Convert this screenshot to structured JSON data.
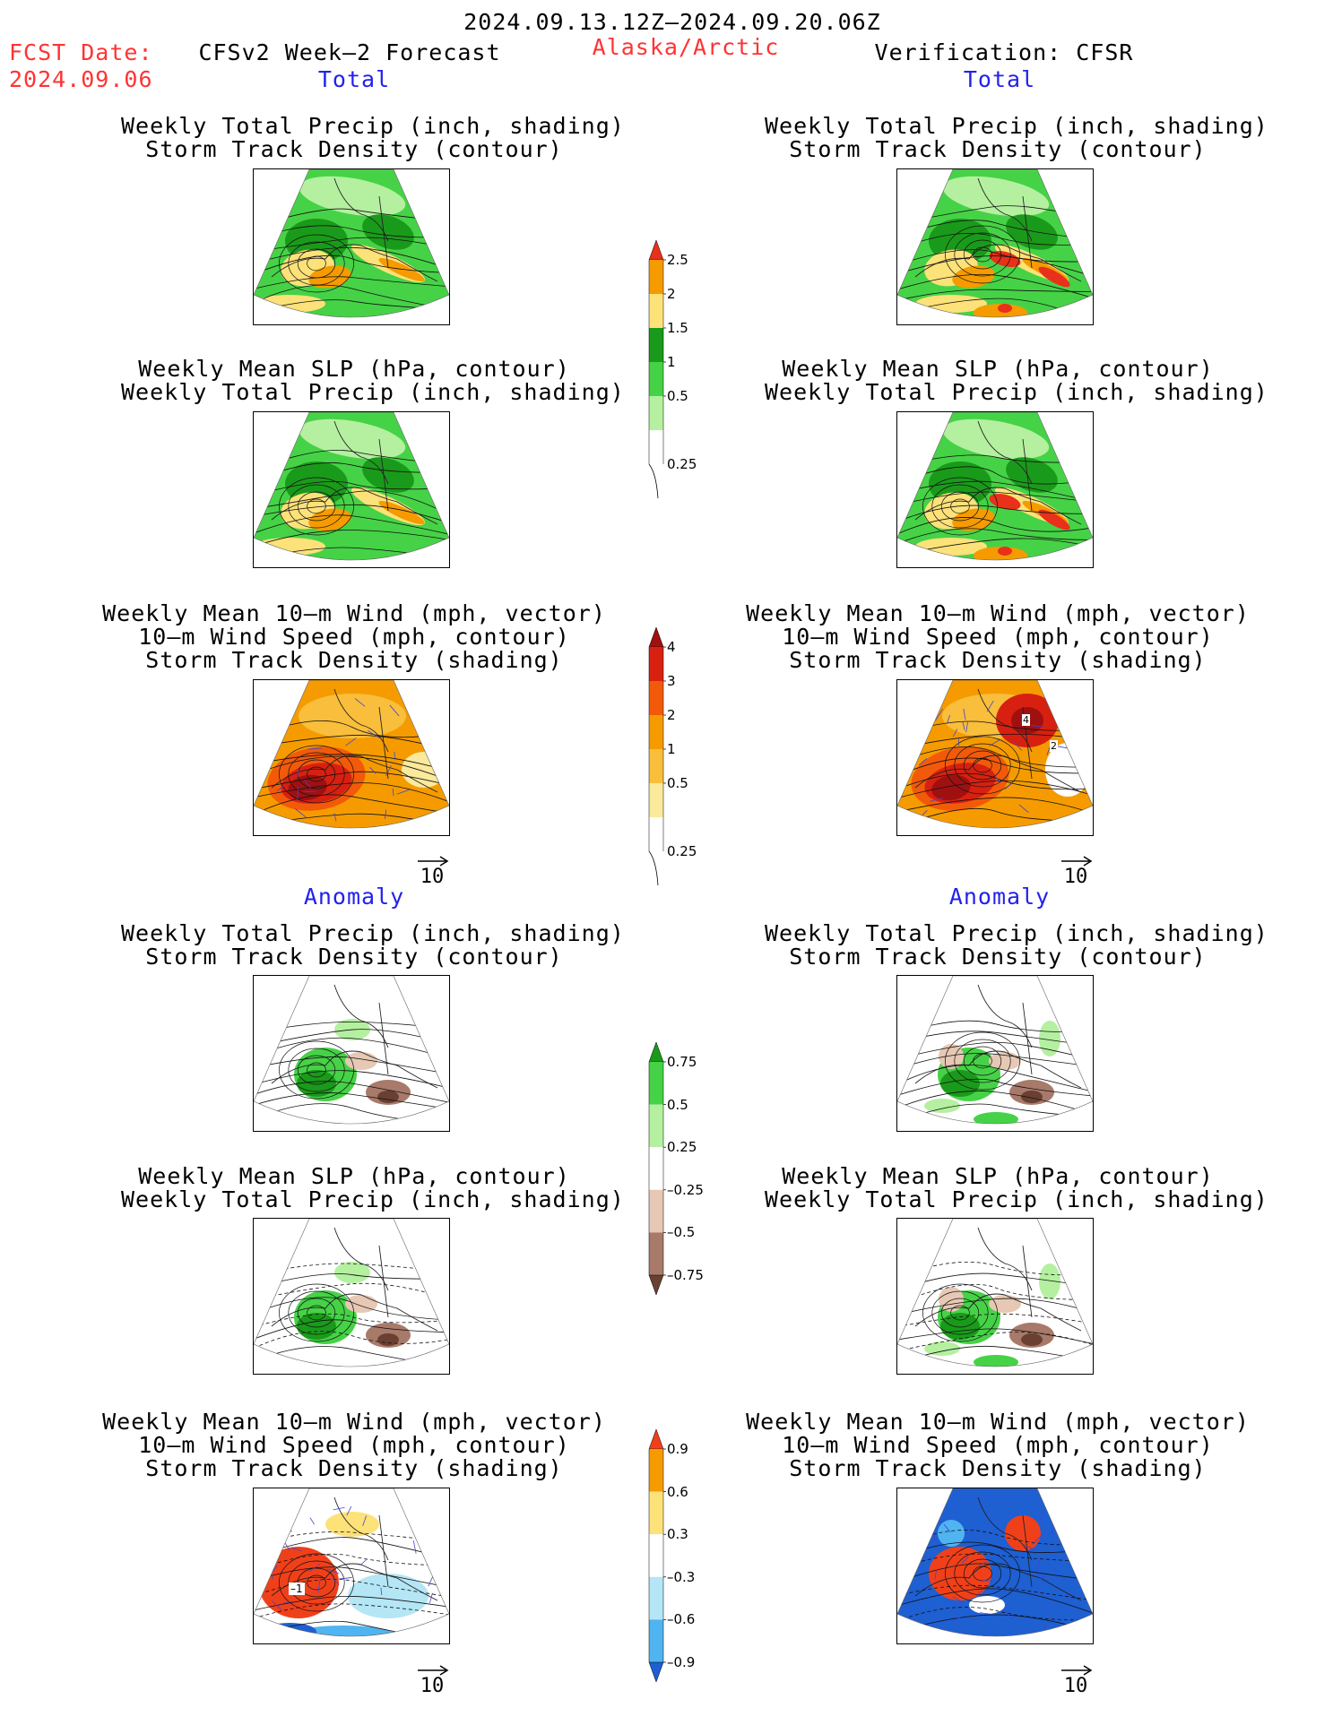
{
  "header": {
    "date_range": "2024.09.13.12Z–2024.09.20.06Z",
    "fcst_label": "FCST Date:",
    "fcst_date": "2024.09.06",
    "forecast_title": "CFSv2 Week–2 Forecast",
    "region": "Alaska/Arctic",
    "verification": "Verification: CFSR"
  },
  "sections": {
    "total": "Total",
    "anomaly": "Anomaly"
  },
  "titles": {
    "precip_storm": [
      "Weekly Total Precip (inch, shading)",
      "Storm Track Density (contour)"
    ],
    "slp_precip": [
      "Weekly Mean SLP (hPa, contour)",
      "Weekly Total Precip (inch, shading)"
    ],
    "wind_storm": [
      "Weekly Mean 10–m Wind (mph, vector)",
      "10–m Wind Speed (mph, contour)",
      "Storm Track Density (shading)"
    ]
  },
  "vector_ref": "10",
  "colorbars": {
    "precip_total": {
      "labels": [
        "2.5",
        "2",
        "1.5",
        "1",
        "0.5",
        "0.25"
      ],
      "colors": [
        "#e8301a",
        "#f59b00",
        "#fde179",
        "#1a9a1a",
        "#46d246",
        "#b4f0a0"
      ]
    },
    "storm_total": {
      "labels": [
        "4",
        "3",
        "2",
        "1",
        "0.5",
        "0.25"
      ],
      "colors": [
        "#a01010",
        "#d82010",
        "#f25a0a",
        "#f59b00",
        "#f8be3c",
        "#fbe99c"
      ]
    },
    "precip_anom": {
      "labels": [
        "0.75",
        "0.5",
        "0.25",
        "–0.25",
        "–0.5",
        "–0.75"
      ],
      "colors": [
        "#1a9a1a",
        "#46d246",
        "#b4f0a0",
        "#ffffff",
        "#e6c8b4",
        "#a87a6a",
        "#6a4032"
      ]
    },
    "storm_anom": {
      "labels": [
        "0.9",
        "0.6",
        "0.3",
        "–0.3",
        "–0.6",
        "–0.9"
      ],
      "colors": [
        "#f0401a",
        "#f59b00",
        "#fde179",
        "#ffffff",
        "#b4e6f5",
        "#50b4f0",
        "#1e5fd2"
      ]
    }
  },
  "contour_labels": {
    "cfsr_wind_total": [
      "4",
      "2"
    ],
    "cfsv2_wind_anom": [
      "–1"
    ]
  }
}
